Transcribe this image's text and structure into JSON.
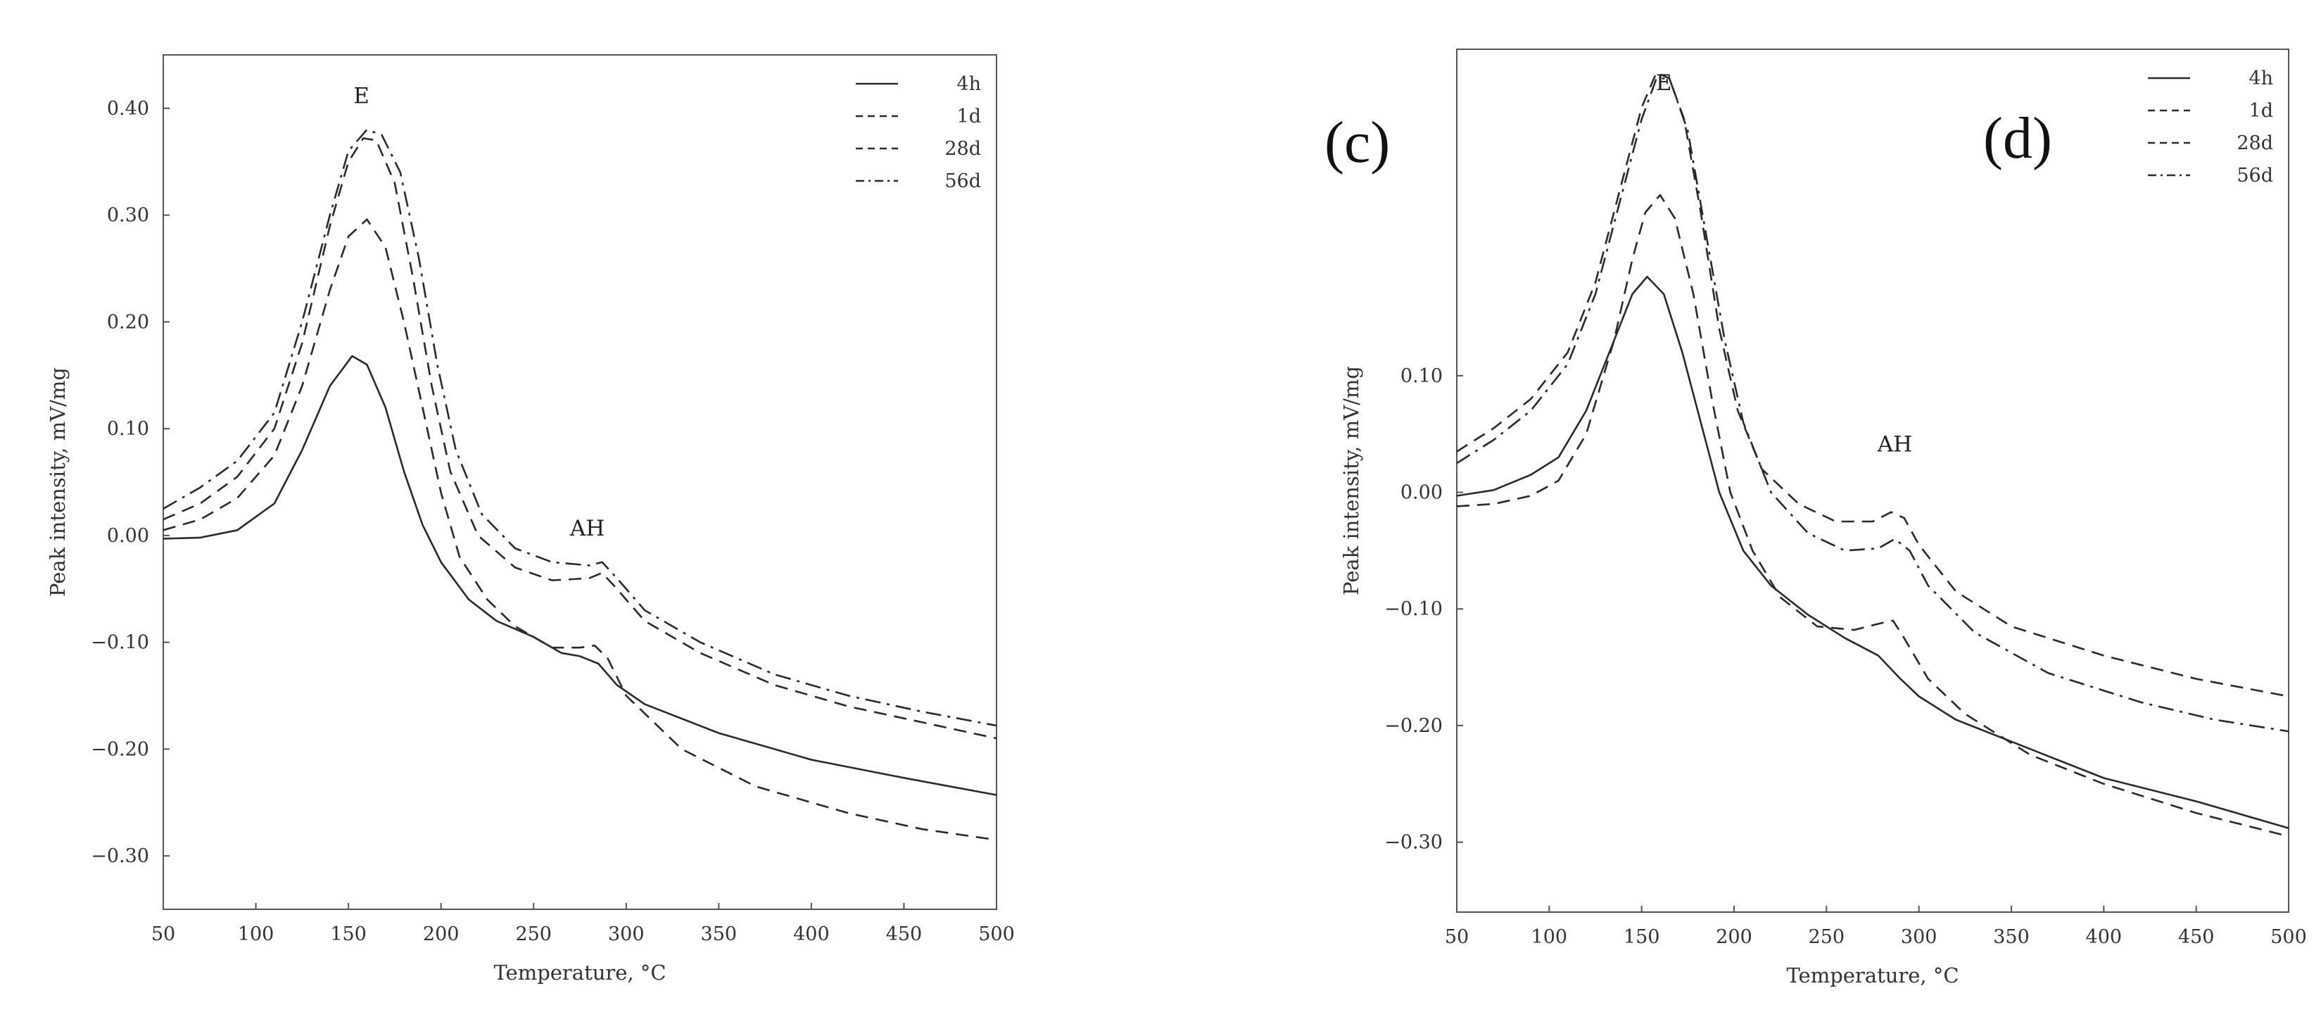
{
  "panel_labels": [
    "(c)",
    "(d)"
  ],
  "chart_data": [
    {
      "type": "line",
      "xlabel": "Temperature, °C",
      "ylabel": "Peak intensity, mV/mg",
      "xlim": [
        50,
        500
      ],
      "ylim": [
        -0.35,
        0.45
      ],
      "xticks": [
        50,
        100,
        150,
        200,
        250,
        300,
        350,
        400,
        450,
        500
      ],
      "yticks": [
        -0.3,
        -0.2,
        -0.1,
        0.0,
        0.1,
        0.2,
        0.3,
        0.4
      ],
      "ytick_labels": [
        "−0.30",
        "−0.20",
        "−0.10",
        "0.00",
        "0.10",
        "0.20",
        "0.30",
        "0.40"
      ],
      "annotations": [
        {
          "text": "E",
          "x": 157,
          "y": 0.405
        },
        {
          "text": "AH",
          "x": 279,
          "y": 0.0
        }
      ],
      "legend_position": "top-right",
      "series": [
        {
          "name": "4h",
          "style": "solid",
          "points": [
            [
              50,
              -0.003
            ],
            [
              70,
              -0.002
            ],
            [
              90,
              0.005
            ],
            [
              110,
              0.03
            ],
            [
              125,
              0.08
            ],
            [
              140,
              0.14
            ],
            [
              152,
              0.168
            ],
            [
              160,
              0.16
            ],
            [
              170,
              0.12
            ],
            [
              180,
              0.06
            ],
            [
              190,
              0.01
            ],
            [
              200,
              -0.025
            ],
            [
              215,
              -0.06
            ],
            [
              230,
              -0.08
            ],
            [
              250,
              -0.095
            ],
            [
              265,
              -0.11
            ],
            [
              275,
              -0.113
            ],
            [
              285,
              -0.12
            ],
            [
              295,
              -0.14
            ],
            [
              310,
              -0.158
            ],
            [
              350,
              -0.185
            ],
            [
              400,
              -0.21
            ],
            [
              450,
              -0.227
            ],
            [
              500,
              -0.243
            ]
          ]
        },
        {
          "name": "1d",
          "style": "dashed",
          "points": [
            [
              50,
              0.005
            ],
            [
              70,
              0.015
            ],
            [
              90,
              0.035
            ],
            [
              110,
              0.075
            ],
            [
              125,
              0.14
            ],
            [
              140,
              0.23
            ],
            [
              150,
              0.28
            ],
            [
              160,
              0.296
            ],
            [
              170,
              0.27
            ],
            [
              180,
              0.2
            ],
            [
              190,
              0.12
            ],
            [
              200,
              0.04
            ],
            [
              210,
              -0.02
            ],
            [
              225,
              -0.06
            ],
            [
              240,
              -0.085
            ],
            [
              260,
              -0.105
            ],
            [
              275,
              -0.105
            ],
            [
              283,
              -0.103
            ],
            [
              290,
              -0.115
            ],
            [
              300,
              -0.15
            ],
            [
              330,
              -0.2
            ],
            [
              370,
              -0.235
            ],
            [
              420,
              -0.26
            ],
            [
              460,
              -0.275
            ],
            [
              500,
              -0.285
            ]
          ]
        },
        {
          "name": "28d",
          "style": "dashed",
          "points": [
            [
              50,
              0.015
            ],
            [
              70,
              0.03
            ],
            [
              90,
              0.055
            ],
            [
              110,
              0.1
            ],
            [
              125,
              0.18
            ],
            [
              140,
              0.29
            ],
            [
              150,
              0.35
            ],
            [
              158,
              0.372
            ],
            [
              165,
              0.37
            ],
            [
              175,
              0.33
            ],
            [
              185,
              0.24
            ],
            [
              195,
              0.14
            ],
            [
              205,
              0.06
            ],
            [
              220,
              0.0
            ],
            [
              240,
              -0.03
            ],
            [
              260,
              -0.042
            ],
            [
              280,
              -0.04
            ],
            [
              287,
              -0.035
            ],
            [
              295,
              -0.05
            ],
            [
              310,
              -0.08
            ],
            [
              340,
              -0.11
            ],
            [
              380,
              -0.14
            ],
            [
              420,
              -0.16
            ],
            [
              460,
              -0.175
            ],
            [
              500,
              -0.19
            ]
          ]
        },
        {
          "name": "56d",
          "style": "dashdot",
          "points": [
            [
              50,
              0.025
            ],
            [
              70,
              0.045
            ],
            [
              90,
              0.07
            ],
            [
              110,
              0.115
            ],
            [
              125,
              0.2
            ],
            [
              140,
              0.3
            ],
            [
              150,
              0.36
            ],
            [
              160,
              0.38
            ],
            [
              168,
              0.375
            ],
            [
              178,
              0.34
            ],
            [
              188,
              0.26
            ],
            [
              198,
              0.16
            ],
            [
              208,
              0.08
            ],
            [
              222,
              0.02
            ],
            [
              240,
              -0.012
            ],
            [
              260,
              -0.025
            ],
            [
              280,
              -0.028
            ],
            [
              287,
              -0.025
            ],
            [
              295,
              -0.04
            ],
            [
              310,
              -0.07
            ],
            [
              340,
              -0.1
            ],
            [
              380,
              -0.13
            ],
            [
              420,
              -0.15
            ],
            [
              460,
              -0.165
            ],
            [
              500,
              -0.178
            ]
          ]
        }
      ]
    },
    {
      "type": "line",
      "xlabel": "Temperature, °C",
      "ylabel": "Peak intensity, mV/mg",
      "xlim": [
        50,
        500
      ],
      "ylim": [
        -0.36,
        0.38
      ],
      "xticks": [
        50,
        100,
        150,
        200,
        250,
        300,
        350,
        400,
        450,
        500
      ],
      "yticks": [
        -0.3,
        -0.2,
        -0.1,
        0.0,
        0.1
      ],
      "ytick_labels": [
        "−0.30",
        "−0.20",
        "−0.10",
        "0.00",
        "0.10"
      ],
      "annotations": [
        {
          "text": "E",
          "x": 162,
          "y": 0.345
        },
        {
          "text": "AH",
          "x": 287,
          "y": 0.035
        }
      ],
      "legend_position": "top-right",
      "series": [
        {
          "name": "4h",
          "style": "solid",
          "points": [
            [
              50,
              -0.003
            ],
            [
              70,
              0.002
            ],
            [
              90,
              0.015
            ],
            [
              105,
              0.03
            ],
            [
              120,
              0.07
            ],
            [
              135,
              0.13
            ],
            [
              145,
              0.17
            ],
            [
              153,
              0.185
            ],
            [
              162,
              0.17
            ],
            [
              172,
              0.12
            ],
            [
              182,
              0.06
            ],
            [
              192,
              0.0
            ],
            [
              205,
              -0.05
            ],
            [
              220,
              -0.08
            ],
            [
              240,
              -0.105
            ],
            [
              260,
              -0.125
            ],
            [
              278,
              -0.14
            ],
            [
              290,
              -0.16
            ],
            [
              300,
              -0.175
            ],
            [
              320,
              -0.195
            ],
            [
              360,
              -0.22
            ],
            [
              400,
              -0.245
            ],
            [
              450,
              -0.265
            ],
            [
              500,
              -0.288
            ]
          ]
        },
        {
          "name": "1d",
          "style": "dashed",
          "points": [
            [
              50,
              -0.012
            ],
            [
              70,
              -0.01
            ],
            [
              90,
              -0.003
            ],
            [
              105,
              0.01
            ],
            [
              120,
              0.05
            ],
            [
              135,
              0.13
            ],
            [
              145,
              0.2
            ],
            [
              152,
              0.24
            ],
            [
              160,
              0.255
            ],
            [
              168,
              0.235
            ],
            [
              178,
              0.17
            ],
            [
              188,
              0.08
            ],
            [
              198,
              0.0
            ],
            [
              210,
              -0.05
            ],
            [
              225,
              -0.09
            ],
            [
              245,
              -0.115
            ],
            [
              265,
              -0.118
            ],
            [
              280,
              -0.112
            ],
            [
              286,
              -0.11
            ],
            [
              292,
              -0.125
            ],
            [
              305,
              -0.16
            ],
            [
              325,
              -0.19
            ],
            [
              360,
              -0.225
            ],
            [
              400,
              -0.25
            ],
            [
              450,
              -0.275
            ],
            [
              500,
              -0.295
            ]
          ]
        },
        {
          "name": "28d",
          "style": "dashed",
          "points": [
            [
              50,
              0.035
            ],
            [
              70,
              0.055
            ],
            [
              90,
              0.08
            ],
            [
              110,
              0.12
            ],
            [
              125,
              0.18
            ],
            [
              140,
              0.27
            ],
            [
              150,
              0.33
            ],
            [
              158,
              0.36
            ],
            [
              165,
              0.355
            ],
            [
              173,
              0.32
            ],
            [
              182,
              0.24
            ],
            [
              192,
              0.14
            ],
            [
              202,
              0.07
            ],
            [
              215,
              0.02
            ],
            [
              235,
              -0.01
            ],
            [
              255,
              -0.025
            ],
            [
              275,
              -0.025
            ],
            [
              285,
              -0.017
            ],
            [
              292,
              -0.022
            ],
            [
              300,
              -0.045
            ],
            [
              320,
              -0.085
            ],
            [
              350,
              -0.115
            ],
            [
              400,
              -0.14
            ],
            [
              450,
              -0.16
            ],
            [
              500,
              -0.175
            ]
          ]
        },
        {
          "name": "56d",
          "style": "dashdot",
          "points": [
            [
              50,
              0.025
            ],
            [
              70,
              0.045
            ],
            [
              90,
              0.07
            ],
            [
              110,
              0.11
            ],
            [
              125,
              0.17
            ],
            [
              140,
              0.26
            ],
            [
              150,
              0.32
            ],
            [
              158,
              0.355
            ],
            [
              165,
              0.355
            ],
            [
              175,
              0.31
            ],
            [
              185,
              0.22
            ],
            [
              195,
              0.13
            ],
            [
              205,
              0.06
            ],
            [
              220,
              0.0
            ],
            [
              240,
              -0.035
            ],
            [
              260,
              -0.05
            ],
            [
              278,
              -0.048
            ],
            [
              287,
              -0.04
            ],
            [
              295,
              -0.05
            ],
            [
              305,
              -0.08
            ],
            [
              330,
              -0.12
            ],
            [
              370,
              -0.155
            ],
            [
              420,
              -0.18
            ],
            [
              460,
              -0.195
            ],
            [
              500,
              -0.205
            ]
          ]
        }
      ]
    }
  ]
}
